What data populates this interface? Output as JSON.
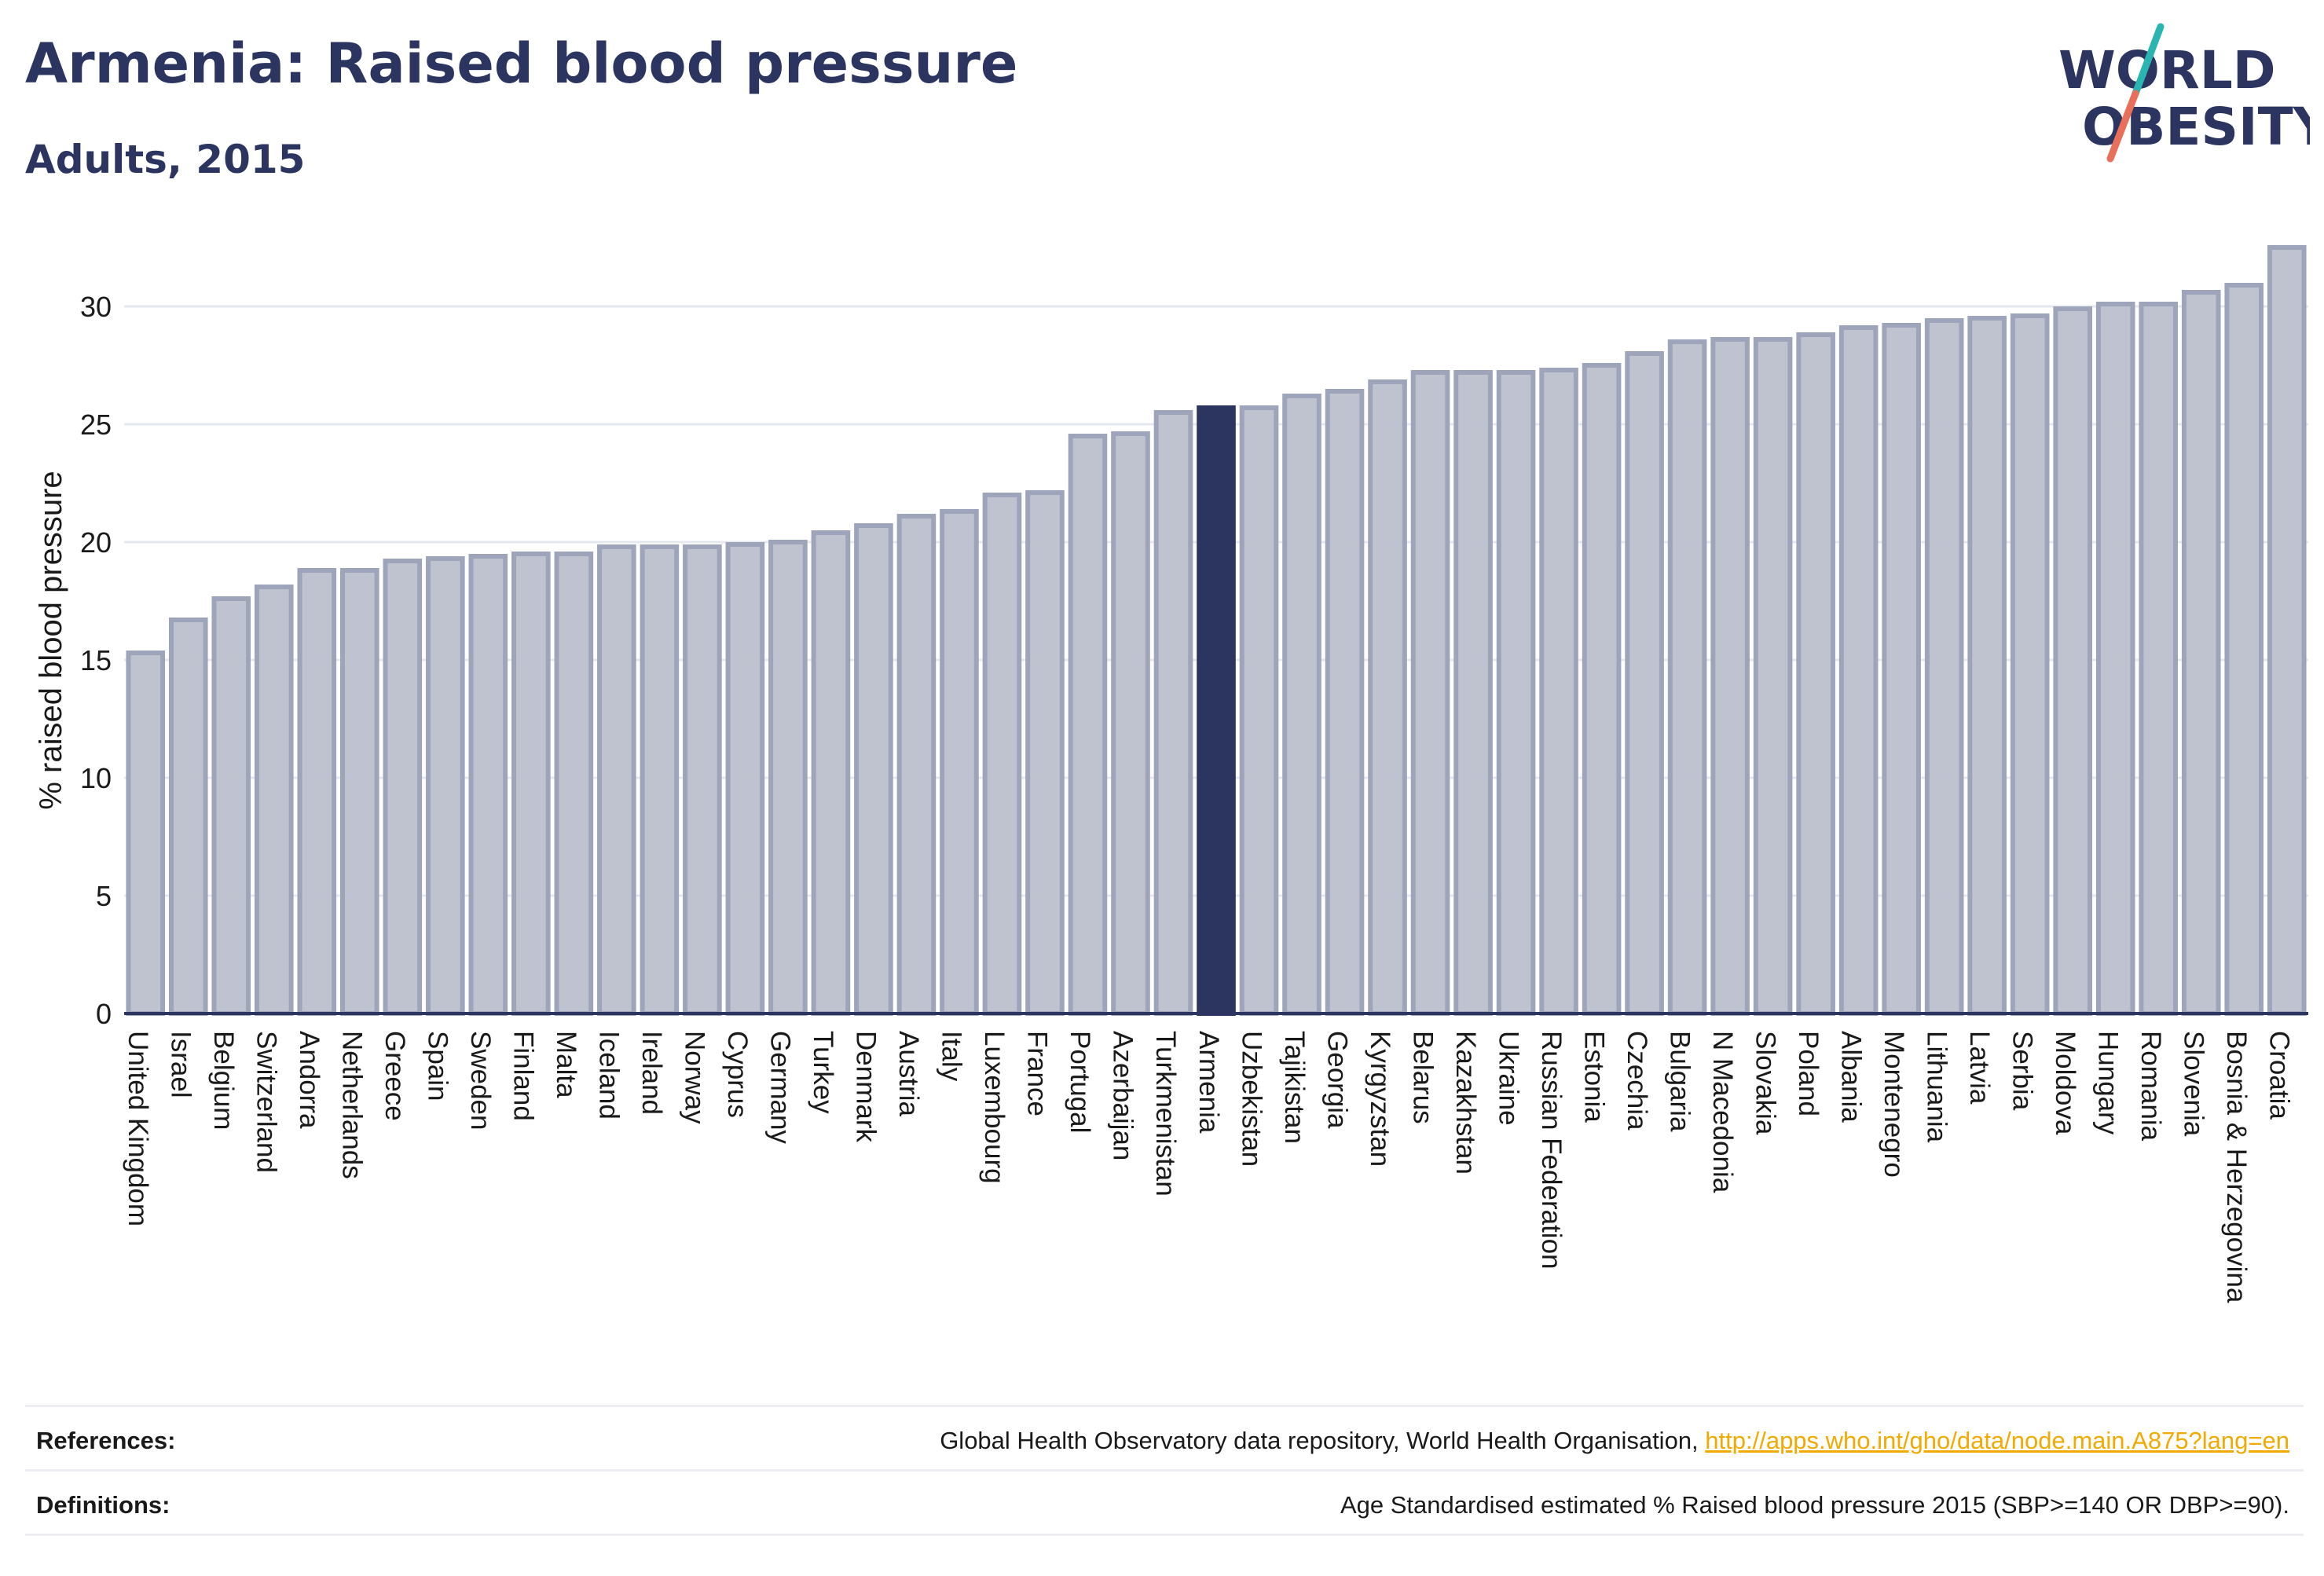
{
  "header": {
    "title": "Armenia: Raised blood pressure",
    "subtitle": "Adults, 2015"
  },
  "logo": {
    "line1": "WORLD",
    "line2": "OBESITY",
    "colors": {
      "text": "#2b3560",
      "slash_teal": "#2ab5b0",
      "slash_coral": "#e8705a"
    }
  },
  "colors": {
    "bar_fill": "#bfc3d0",
    "bar_stroke": "#9ea4ba",
    "highlight_fill": "#2b3560",
    "axis": "#2b3560",
    "grid": "#e6e8ef"
  },
  "chart_data": {
    "type": "bar",
    "ylabel": "% raised blood pressure",
    "ylim": [
      0,
      33
    ],
    "yticks": [
      0,
      5,
      10,
      15,
      20,
      25,
      30
    ],
    "highlight": "Armenia",
    "grid": true,
    "categories": [
      "United Kingdom",
      "Israel",
      "Belgium",
      "Switzerland",
      "Andorra",
      "Netherlands",
      "Greece",
      "Spain",
      "Sweden",
      "Finland",
      "Malta",
      "Iceland",
      "Ireland",
      "Norway",
      "Cyprus",
      "Germany",
      "Turkey",
      "Denmark",
      "Austria",
      "Italy",
      "Luxembourg",
      "France",
      "Portugal",
      "Azerbaijan",
      "Turkmenistan",
      "Armenia",
      "Uzbekistan",
      "Tajikistan",
      "Georgia",
      "Kyrgyzstan",
      "Belarus",
      "Kazakhstan",
      "Ukraine",
      "Russian Federation",
      "Estonia",
      "Czechia",
      "Bulgaria",
      "N Macedonia",
      "Slovakia",
      "Poland",
      "Albania",
      "Montenegro",
      "Lithuania",
      "Latvia",
      "Serbia",
      "Moldova",
      "Hungary",
      "Romania",
      "Slovenia",
      "Bosnia & Herzegovina",
      "Croatia"
    ],
    "values": [
      15.3,
      16.7,
      17.6,
      18.1,
      18.8,
      18.8,
      19.2,
      19.3,
      19.4,
      19.5,
      19.5,
      19.8,
      19.8,
      19.8,
      19.9,
      20.0,
      20.4,
      20.7,
      21.1,
      21.3,
      22.0,
      22.1,
      24.5,
      24.6,
      25.5,
      25.7,
      25.7,
      26.2,
      26.4,
      26.8,
      27.2,
      27.2,
      27.2,
      27.3,
      27.5,
      28.0,
      28.5,
      28.6,
      28.6,
      28.8,
      29.1,
      29.2,
      29.4,
      29.5,
      29.6,
      29.9,
      30.1,
      30.1,
      30.6,
      30.9,
      32.5
    ]
  },
  "footer": {
    "references_label": "References:",
    "references_text": "Global Health Observatory data repository, World Health Organisation, ",
    "references_link": "http://apps.who.int/gho/data/node.main.A875?lang=en",
    "definitions_label": "Definitions:",
    "definitions_text": "Age Standardised estimated % Raised blood pressure 2015 (SBP>=140 OR DBP>=90)."
  }
}
